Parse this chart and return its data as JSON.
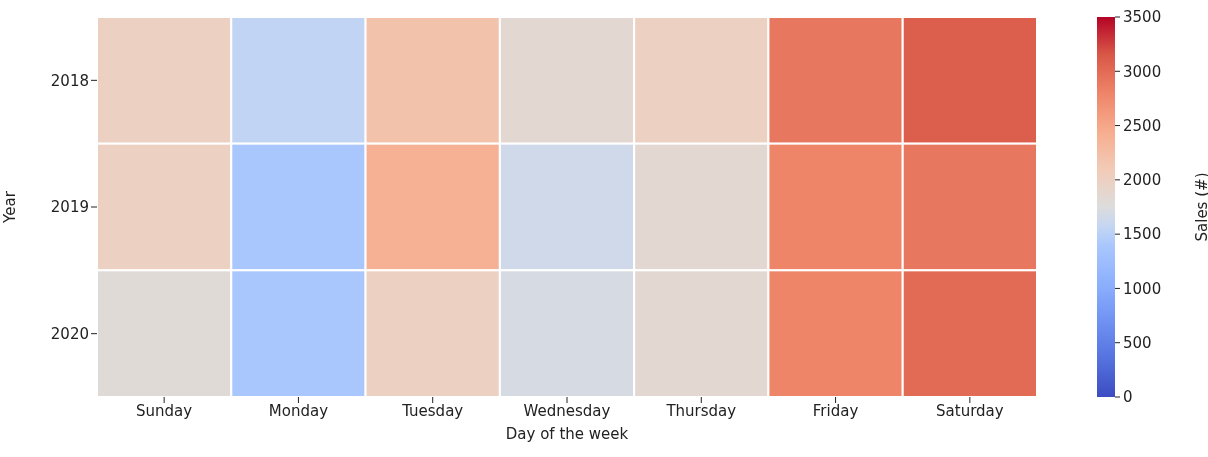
{
  "chart_data": {
    "type": "heatmap",
    "xlabel": "Day of the week",
    "ylabel": "Year",
    "clabel": "Sales (#)",
    "categories": [
      "Sunday",
      "Monday",
      "Tuesday",
      "Wednesday",
      "Thursday",
      "Friday",
      "Saturday"
    ],
    "y_categories": [
      "2018",
      "2019",
      "2020"
    ],
    "cells": [
      [
        2000,
        1550,
        2200,
        1850,
        2000,
        2900,
        3100
      ],
      [
        2000,
        1400,
        2400,
        1650,
        1850,
        2800,
        2900
      ],
      [
        1800,
        1400,
        2000,
        1700,
        1850,
        2800,
        3000
      ]
    ],
    "clim": [
      0,
      3500
    ],
    "cticks": [
      0,
      500,
      1000,
      1500,
      2000,
      2500,
      3000,
      3500
    ]
  }
}
